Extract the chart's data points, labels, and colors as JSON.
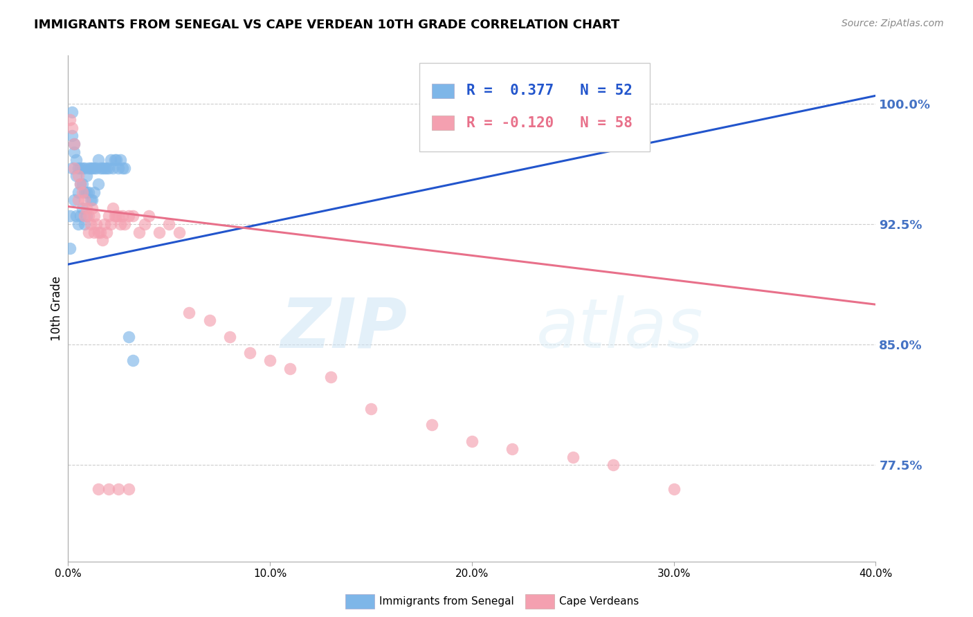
{
  "title": "IMMIGRANTS FROM SENEGAL VS CAPE VERDEAN 10TH GRADE CORRELATION CHART",
  "source": "Source: ZipAtlas.com",
  "ylabel": "10th Grade",
  "y_ticks": [
    0.775,
    0.85,
    0.925,
    1.0
  ],
  "y_tick_labels": [
    "77.5%",
    "85.0%",
    "92.5%",
    "100.0%"
  ],
  "x_min": 0.0,
  "x_max": 0.4,
  "y_min": 0.715,
  "y_max": 1.03,
  "blue_label": "Immigrants from Senegal",
  "pink_label": "Cape Verdeans",
  "blue_color": "#7eb6e8",
  "pink_color": "#f4a0b0",
  "blue_line_color": "#2255cc",
  "pink_line_color": "#e8708a",
  "blue_scatter_x": [
    0.001,
    0.001,
    0.002,
    0.002,
    0.002,
    0.003,
    0.003,
    0.003,
    0.004,
    0.004,
    0.004,
    0.005,
    0.005,
    0.005,
    0.006,
    0.006,
    0.006,
    0.007,
    0.007,
    0.007,
    0.008,
    0.008,
    0.008,
    0.009,
    0.009,
    0.009,
    0.01,
    0.01,
    0.011,
    0.011,
    0.012,
    0.012,
    0.013,
    0.013,
    0.014,
    0.015,
    0.015,
    0.016,
    0.017,
    0.018,
    0.019,
    0.02,
    0.021,
    0.022,
    0.023,
    0.024,
    0.025,
    0.026,
    0.027,
    0.028,
    0.03,
    0.032
  ],
  "blue_scatter_y": [
    0.93,
    0.91,
    0.995,
    0.98,
    0.96,
    0.975,
    0.97,
    0.94,
    0.965,
    0.955,
    0.93,
    0.96,
    0.945,
    0.925,
    0.96,
    0.95,
    0.93,
    0.96,
    0.95,
    0.935,
    0.96,
    0.945,
    0.925,
    0.955,
    0.945,
    0.93,
    0.96,
    0.945,
    0.96,
    0.94,
    0.96,
    0.94,
    0.96,
    0.945,
    0.96,
    0.965,
    0.95,
    0.96,
    0.96,
    0.96,
    0.96,
    0.96,
    0.965,
    0.96,
    0.965,
    0.965,
    0.96,
    0.965,
    0.96,
    0.96,
    0.855,
    0.84
  ],
  "pink_scatter_x": [
    0.001,
    0.002,
    0.003,
    0.003,
    0.005,
    0.005,
    0.006,
    0.007,
    0.008,
    0.008,
    0.009,
    0.01,
    0.01,
    0.011,
    0.012,
    0.013,
    0.013,
    0.014,
    0.015,
    0.016,
    0.017,
    0.018,
    0.019,
    0.02,
    0.021,
    0.022,
    0.023,
    0.024,
    0.025,
    0.026,
    0.027,
    0.028,
    0.03,
    0.032,
    0.035,
    0.038,
    0.04,
    0.045,
    0.05,
    0.055,
    0.06,
    0.07,
    0.08,
    0.09,
    0.1,
    0.11,
    0.13,
    0.15,
    0.18,
    0.2,
    0.22,
    0.25,
    0.27,
    0.3,
    0.015,
    0.02,
    0.025,
    0.03
  ],
  "pink_scatter_y": [
    0.99,
    0.985,
    0.975,
    0.96,
    0.955,
    0.94,
    0.95,
    0.945,
    0.94,
    0.93,
    0.935,
    0.93,
    0.92,
    0.925,
    0.935,
    0.93,
    0.92,
    0.925,
    0.92,
    0.92,
    0.915,
    0.925,
    0.92,
    0.93,
    0.925,
    0.935,
    0.93,
    0.93,
    0.93,
    0.925,
    0.93,
    0.925,
    0.93,
    0.93,
    0.92,
    0.925,
    0.93,
    0.92,
    0.925,
    0.92,
    0.87,
    0.865,
    0.855,
    0.845,
    0.84,
    0.835,
    0.83,
    0.81,
    0.8,
    0.79,
    0.785,
    0.78,
    0.775,
    0.76,
    0.76,
    0.76,
    0.76,
    0.76
  ],
  "watermark_zip": "ZIP",
  "watermark_atlas": "atlas",
  "legend_text_blue": "R =  0.377   N = 52",
  "legend_text_pink": "R = -0.120   N = 58"
}
